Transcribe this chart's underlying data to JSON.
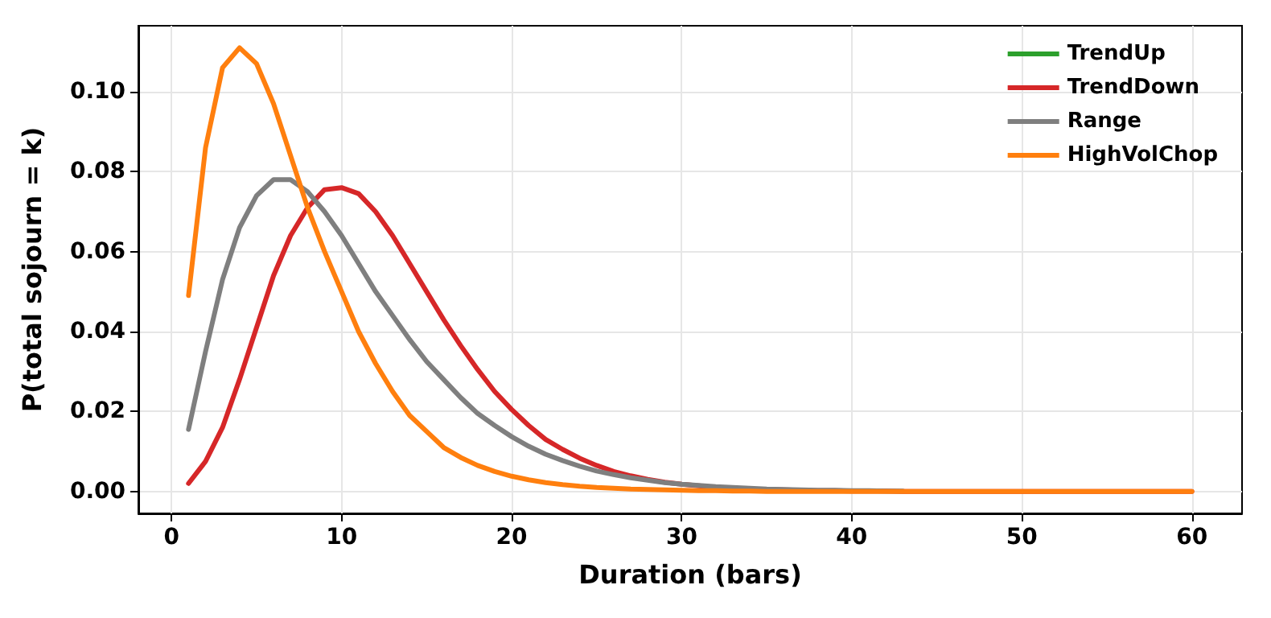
{
  "chart_data": {
    "type": "line",
    "xlabel": "Duration (bars)",
    "ylabel": "P(total sojourn = k)",
    "x": [
      1,
      2,
      3,
      4,
      5,
      6,
      7,
      8,
      9,
      10,
      11,
      12,
      13,
      14,
      15,
      16,
      17,
      18,
      19,
      20,
      21,
      22,
      23,
      24,
      25,
      26,
      27,
      28,
      29,
      30,
      31,
      32,
      33,
      34,
      35,
      36,
      37,
      38,
      39,
      40,
      41,
      42,
      43,
      44,
      45,
      46,
      47,
      48,
      49,
      50,
      51,
      52,
      53,
      54,
      55,
      56,
      57,
      58,
      59,
      60
    ],
    "series": [
      {
        "name": "TrendUp",
        "color": "#2ca02c",
        "values": [
          null,
          null,
          null,
          null,
          null,
          null,
          null,
          null,
          null,
          null,
          null,
          null,
          null,
          null,
          null,
          null,
          null,
          null,
          null,
          null,
          null,
          null,
          null,
          null,
          null,
          null,
          null,
          null,
          null,
          null,
          null,
          null,
          null,
          null,
          null,
          null,
          null,
          null,
          null,
          null,
          null,
          null,
          null,
          null,
          null,
          null,
          null,
          null,
          null,
          null,
          null,
          null,
          null,
          null,
          null,
          null,
          null,
          null,
          null,
          null
        ]
      },
      {
        "name": "TrendDown",
        "color": "#d62728",
        "values": [
          0.002,
          0.0075,
          0.016,
          0.028,
          0.041,
          0.054,
          0.064,
          0.071,
          0.0755,
          0.076,
          0.0745,
          0.07,
          0.064,
          0.057,
          0.05,
          0.043,
          0.0365,
          0.0305,
          0.025,
          0.0205,
          0.0165,
          0.013,
          0.0105,
          0.0083,
          0.0065,
          0.005,
          0.0039,
          0.003,
          0.0023,
          0.0018,
          0.0014,
          0.001,
          0.0008,
          0.0006,
          0.0005,
          0.0004,
          0.0003,
          0.0002,
          0.0002,
          0.0001,
          0.0001,
          0.0001,
          0,
          0,
          0,
          0,
          0,
          0,
          0,
          0,
          0,
          0,
          0,
          0,
          0,
          0,
          0,
          0,
          0,
          0
        ]
      },
      {
        "name": "Range",
        "color": "#7f7f7f",
        "values": [
          0.0155,
          0.035,
          0.053,
          0.066,
          0.074,
          0.078,
          0.078,
          0.075,
          0.07,
          0.064,
          0.057,
          0.05,
          0.044,
          0.038,
          0.0325,
          0.028,
          0.0235,
          0.0195,
          0.0165,
          0.0137,
          0.0113,
          0.0093,
          0.0077,
          0.0063,
          0.0051,
          0.0042,
          0.0034,
          0.0028,
          0.0022,
          0.0018,
          0.0015,
          0.0012,
          0.001,
          0.0008,
          0.0006,
          0.0005,
          0.0004,
          0.0003,
          0.0003,
          0.0002,
          0.0002,
          0.0001,
          0.0001,
          null,
          null,
          null,
          null,
          null,
          null,
          null,
          null,
          null,
          null,
          null,
          null,
          null,
          null,
          null,
          null,
          null
        ]
      },
      {
        "name": "HighVolChop",
        "color": "#ff7f0e",
        "values": [
          0.049,
          0.086,
          0.106,
          0.111,
          0.107,
          0.097,
          0.084,
          0.071,
          0.06,
          0.05,
          0.04,
          0.032,
          0.025,
          0.019,
          0.015,
          0.011,
          0.0085,
          0.0065,
          0.005,
          0.0038,
          0.0029,
          0.0022,
          0.0017,
          0.0013,
          0.001,
          0.0008,
          0.0006,
          0.0005,
          0.0004,
          0.0003,
          0.0002,
          0.0002,
          0.0001,
          0.0001,
          0,
          0,
          0,
          0,
          0,
          0,
          0,
          0,
          0,
          0,
          0,
          0,
          0,
          0,
          0,
          0,
          0,
          0,
          0,
          0,
          0,
          0,
          0,
          0,
          0,
          0
        ]
      }
    ],
    "xlim": [
      -1.95,
      62.95
    ],
    "xticks": [
      0,
      10,
      20,
      30,
      40,
      50,
      60
    ],
    "ylim": [
      -0.0055,
      0.1165
    ],
    "yticks": [
      {
        "value": 0,
        "label": "0.00"
      },
      {
        "value": 0.02,
        "label": "0.02"
      },
      {
        "value": 0.04,
        "label": "0.04"
      },
      {
        "value": 0.06,
        "label": "0.06"
      },
      {
        "value": 0.08,
        "label": "0.08"
      },
      {
        "value": 0.1,
        "label": "0.10"
      }
    ],
    "grid": true,
    "legend": "top right"
  }
}
